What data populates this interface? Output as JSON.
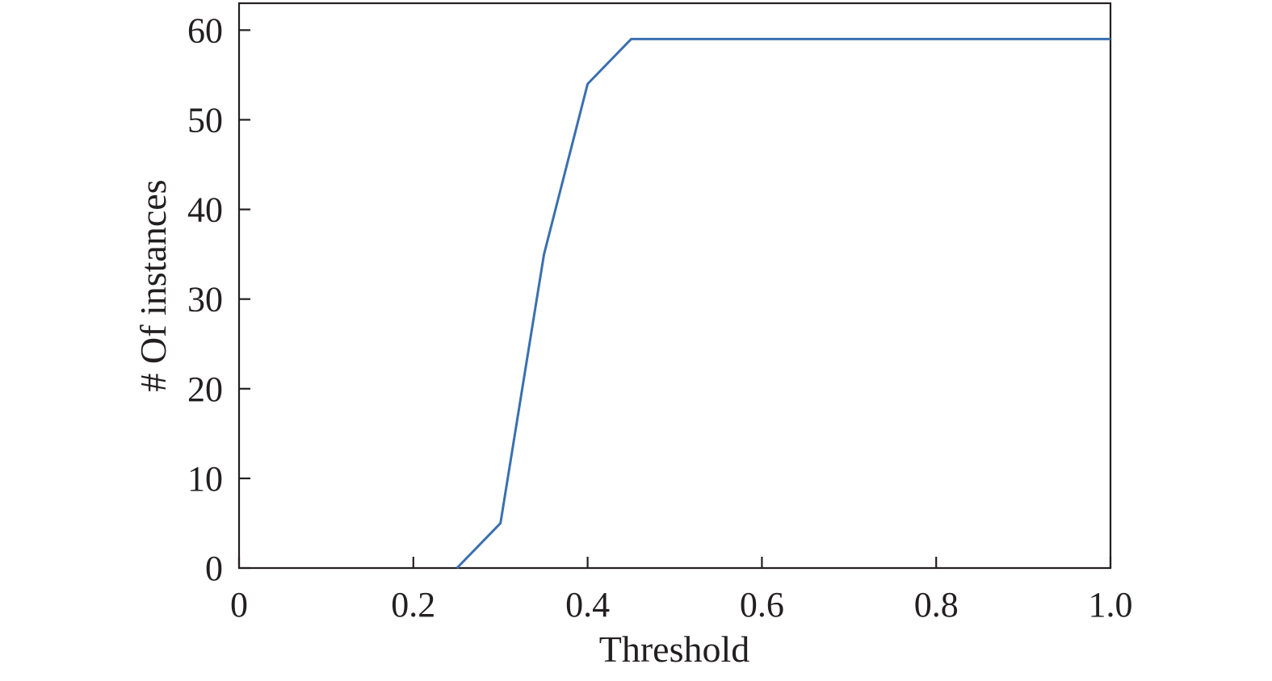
{
  "chart_data": {
    "type": "line",
    "title": "",
    "xlabel": "Threshold",
    "ylabel": "# Of instances",
    "xlim": [
      0,
      1.0
    ],
    "ylim": [
      0,
      63
    ],
    "xticks": [
      0,
      0.2,
      0.4,
      0.6,
      0.8,
      1.0
    ],
    "xtick_labels": [
      "0",
      "0.2",
      "0.4",
      "0.6",
      "0.8",
      "1.0"
    ],
    "yticks": [
      0,
      10,
      20,
      30,
      40,
      50,
      60
    ],
    "ytick_labels": [
      "0",
      "10",
      "20",
      "30",
      "40",
      "50",
      "60"
    ],
    "grid": false,
    "series": [
      {
        "color": "#3a6fb0",
        "x": [
          0.25,
          0.3,
          0.35,
          0.4,
          0.45,
          0.5,
          0.55,
          0.6,
          0.65,
          0.7,
          0.75,
          0.8,
          0.85,
          0.9,
          0.95,
          1.0
        ],
        "y": [
          0,
          5,
          35,
          54,
          59,
          59,
          59,
          59,
          59,
          59,
          59,
          59,
          59,
          59,
          59,
          59
        ]
      }
    ]
  }
}
